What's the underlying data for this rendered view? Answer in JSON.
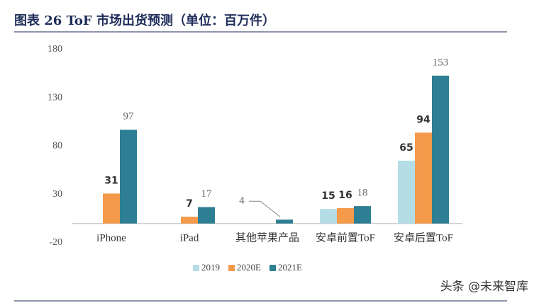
{
  "chart_data": {
    "type": "bar",
    "title": "图表 26 ToF 市场出货预测（单位：百万件）",
    "watermark": "头条 @未来智库",
    "categories": [
      "iPhone",
      "iPad",
      "其他苹果产品",
      "安卓前置ToF",
      "安卓后置ToF"
    ],
    "series": [
      {
        "name": "2019",
        "color": "#b4dde6",
        "values": [
          null,
          null,
          null,
          15,
          65
        ]
      },
      {
        "name": "2020E",
        "color": "#f39a4b",
        "values": [
          31,
          7,
          null,
          16,
          94
        ]
      },
      {
        "name": "2021E",
        "color": "#2e7f93",
        "values": [
          97,
          17,
          4,
          18,
          153
        ]
      }
    ],
    "ylim": [
      -20,
      180
    ],
    "yticks": [
      -20,
      30,
      80,
      130,
      180
    ],
    "grid": false,
    "legend": "bottom"
  }
}
